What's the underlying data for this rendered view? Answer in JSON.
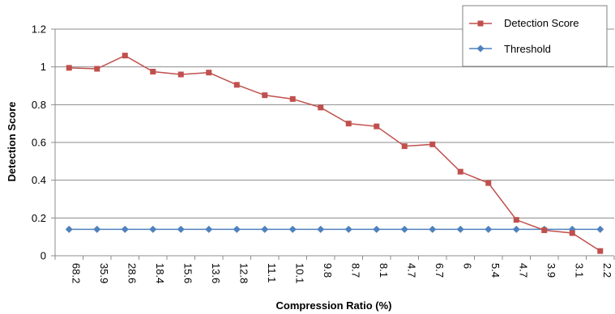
{
  "chart_data": {
    "type": "line",
    "title": "",
    "xlabel": "Compression Ratio (%)",
    "ylabel": "Detection Score",
    "categories": [
      "68.2",
      "35.9",
      "28.6",
      "18.4",
      "15.6",
      "13.6",
      "12.8",
      "11.1",
      "10.1",
      "9.8",
      "8.7",
      "8.1",
      "4.7",
      "6.7",
      "6",
      "5.4",
      "4.7",
      "3.9",
      "3.1",
      "2.2"
    ],
    "ylim": [
      0,
      1.2
    ],
    "yticks": [
      "0",
      "0.2",
      "0.4",
      "0.6",
      "0.8",
      "1",
      "1.2"
    ],
    "grid": "horizontal",
    "legend_position": "top-right",
    "series": [
      {
        "name": "Detection Score",
        "color": "#c0504d",
        "marker": "square",
        "values": [
          0.995,
          0.99,
          1.06,
          0.975,
          0.96,
          0.97,
          0.905,
          0.85,
          0.83,
          0.785,
          0.7,
          0.685,
          0.58,
          0.59,
          0.445,
          0.385,
          0.19,
          0.135,
          0.12,
          0.025
        ]
      },
      {
        "name": "Threshold",
        "color": "#4f81bd",
        "marker": "diamond",
        "values": [
          0.14,
          0.14,
          0.14,
          0.14,
          0.14,
          0.14,
          0.14,
          0.14,
          0.14,
          0.14,
          0.14,
          0.14,
          0.14,
          0.14,
          0.14,
          0.14,
          0.14,
          0.14,
          0.14,
          0.14
        ]
      }
    ]
  }
}
